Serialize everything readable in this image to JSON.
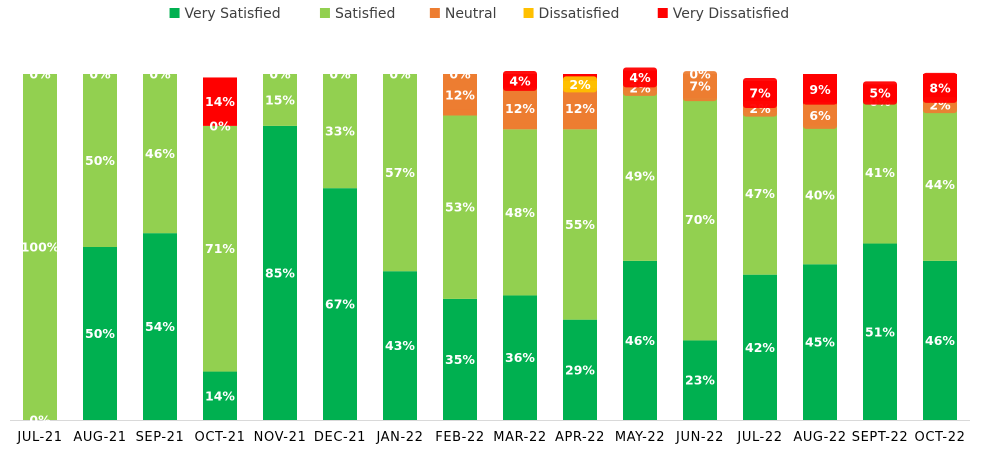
{
  "chart_data": {
    "type": "bar",
    "stacked": true,
    "title": "",
    "xlabel": "",
    "ylabel": "",
    "ylim": [
      0,
      100
    ],
    "grid": false,
    "legend_position": "top",
    "categories": [
      "JUL-21",
      "AUG-21",
      "SEP-21",
      "OCT-21",
      "NOV-21",
      "DEC-21",
      "JAN-22",
      "FEB-22",
      "MAR-22",
      "APR-22",
      "MAY-22",
      "JUN-22",
      "JUL-22",
      "AUG-22",
      "SEPT-22",
      "OCT-22"
    ],
    "series": [
      {
        "name": "Very Satisfied",
        "color": "#00b050",
        "values": [
          0,
          50,
          54,
          14,
          85,
          67,
          43,
          35,
          36,
          29,
          46,
          23,
          42,
          45,
          51,
          46
        ],
        "labels": [
          "0%",
          "50%",
          "54%",
          "14%",
          "85%",
          "67%",
          "43%",
          "35%",
          "36%",
          "29%",
          "46%",
          "23%",
          "42%",
          "45%",
          "51%",
          "46%"
        ]
      },
      {
        "name": "Satisfied",
        "color": "#92d050",
        "values": [
          100,
          50,
          46,
          71,
          15,
          33,
          57,
          53,
          48,
          55,
          49,
          70,
          47,
          40,
          41,
          44
        ],
        "labels": [
          "100%",
          "50%",
          "46%",
          "71%",
          "15%",
          "33%",
          "57%",
          "53%",
          "48%",
          "55%",
          "49%",
          "70%",
          "47%",
          "40%",
          "41%",
          "44%"
        ]
      },
      {
        "name": "Neutral",
        "color": "#ed7d31",
        "values": [
          0,
          0,
          0,
          0,
          0,
          0,
          0,
          12,
          12,
          12,
          2,
          7,
          2,
          6,
          0,
          2
        ],
        "labels": [
          "0%",
          "0%",
          "0%",
          "0%",
          "0%",
          "0%",
          "0%",
          "12%",
          "12%",
          "12%",
          "2%",
          "7%",
          "2%",
          "6%",
          "0%",
          "2%"
        ]
      },
      {
        "name": "Dissatisfied",
        "color": "#ffc000",
        "values": [
          0,
          0,
          0,
          0,
          0,
          0,
          0,
          0,
          0,
          2,
          0,
          0,
          0,
          0,
          0,
          0
        ],
        "labels": [
          null,
          null,
          null,
          null,
          null,
          null,
          null,
          "0%",
          null,
          "2%",
          null,
          null,
          null,
          null,
          null,
          null
        ]
      },
      {
        "name": "Very Dissatisfied",
        "color": "#ff0000",
        "values": [
          0,
          0,
          0,
          14,
          0,
          0,
          0,
          0,
          4,
          2,
          4,
          0,
          7,
          9,
          5,
          8
        ],
        "labels": [
          null,
          null,
          null,
          "14%",
          null,
          null,
          null,
          null,
          "4%",
          null,
          "4%",
          "0%",
          "7%",
          "9%",
          "5%",
          "8%"
        ]
      }
    ]
  }
}
